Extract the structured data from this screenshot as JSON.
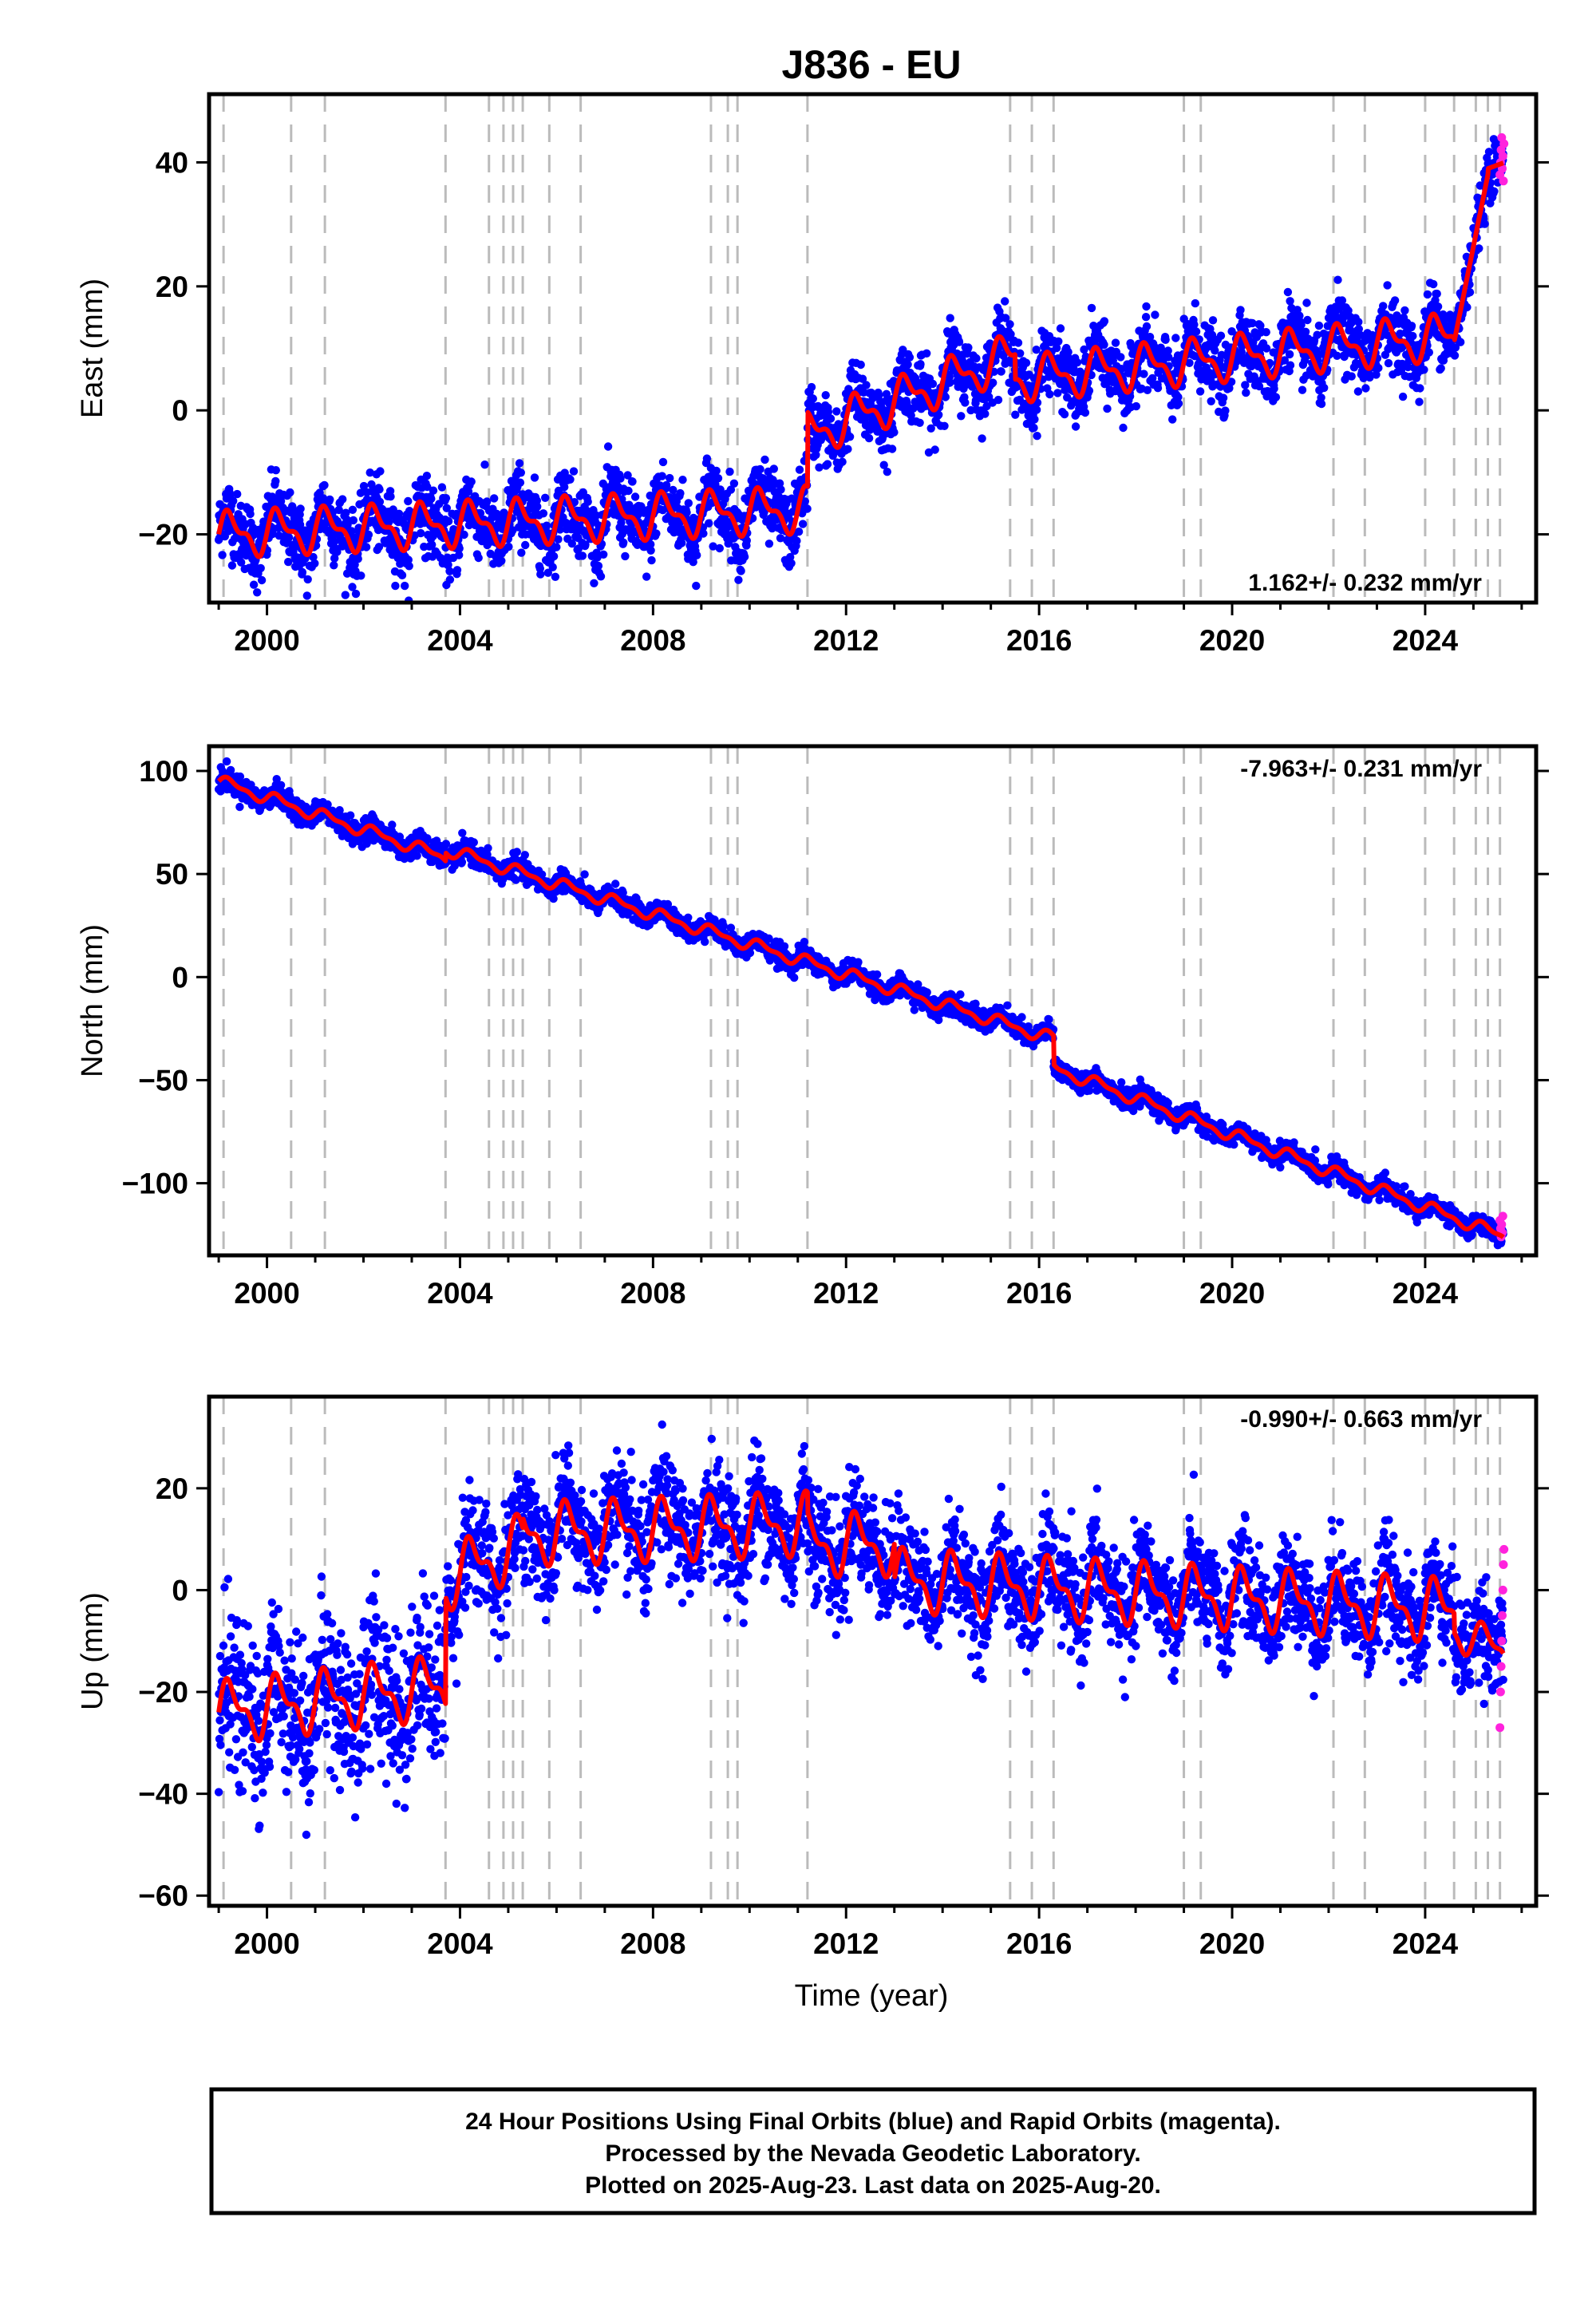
{
  "chart_data": {
    "title": "J836 - EU",
    "type": "scatter",
    "x_axis": {
      "label": "Time (year)",
      "range": [
        1998.8,
        2026.3
      ],
      "ticks": [
        2000,
        2004,
        2008,
        2012,
        2016,
        2020,
        2024
      ]
    },
    "event_lines_years": [
      1999.1,
      2000.5,
      2001.2,
      2003.7,
      2004.6,
      2004.9,
      2005.1,
      2005.3,
      2005.85,
      2006.5,
      2009.2,
      2009.55,
      2009.75,
      2011.2,
      2015.4,
      2015.85,
      2016.3,
      2019.0,
      2019.35,
      2022.1,
      2022.75,
      2024.0,
      2024.6,
      2025.05,
      2025.3,
      2025.55
    ],
    "series_legend": {
      "final": "Final Orbits (blue)",
      "rapid": "Rapid Orbits (magenta)",
      "model": "model fit (red)"
    },
    "colors": {
      "final": "#0000ff",
      "rapid": "#ff22dd",
      "model": "#ff0000",
      "events": "#bbbbbb"
    },
    "panels": [
      {
        "key": "east",
        "ylabel": "East (mm)",
        "ylim": [
          -31,
          51
        ],
        "yticks": [
          -20,
          0,
          20,
          40
        ],
        "rate_text": "1.162+/- 0.232 mm/yr",
        "rate_position": "bottom-right",
        "segments": [
          {
            "start": 1999.0,
            "end": 2011.2,
            "v0": -20,
            "v1": -16,
            "amp": 3.0,
            "noise": 3.2
          },
          {
            "start": 2011.2,
            "end": 2015.5,
            "v0": -4,
            "v1": 9,
            "amp": 3.0,
            "noise": 3.0
          },
          {
            "start": 2015.5,
            "end": 2024.6,
            "v0": 5,
            "v1": 12,
            "amp": 3.0,
            "noise": 3.0
          },
          {
            "start": 2024.6,
            "end": 2025.3,
            "v0": 11,
            "v1": 38,
            "amp": 0,
            "noise": 3.0
          },
          {
            "start": 2025.3,
            "end": 2025.65,
            "v0": 39,
            "v1": 40,
            "amp": 0,
            "noise": 2.5
          }
        ],
        "rapid_values": [
          38,
          40,
          42,
          44,
          39,
          41,
          37,
          43
        ]
      },
      {
        "key": "north",
        "ylabel": "North (mm)",
        "ylim": [
          -135,
          112
        ],
        "yticks": [
          -100,
          -50,
          0,
          50,
          100
        ],
        "rate_text": "-7.963+/- 0.231 mm/yr",
        "rate_position": "top-right",
        "segments": [
          {
            "start": 1999.0,
            "end": 2003.7,
            "v0": 95,
            "v1": 58,
            "amp": 2.5,
            "noise": 3.0
          },
          {
            "start": 2003.7,
            "end": 2016.3,
            "v0": 62,
            "v1": -30,
            "amp": 2.5,
            "noise": 2.8
          },
          {
            "start": 2016.3,
            "end": 2025.65,
            "v0": -44,
            "v1": -126,
            "amp": 2.5,
            "noise": 2.6
          }
        ],
        "rapid_values": [
          -118,
          -122,
          -126,
          -120,
          -124,
          -116
        ]
      },
      {
        "key": "up",
        "ylabel": "Up (mm)",
        "ylim": [
          -62,
          38
        ],
        "yticks": [
          -60,
          -40,
          -20,
          0,
          20
        ],
        "rate_text": "-0.990+/- 0.663 mm/yr",
        "rate_position": "top-right",
        "segments": [
          {
            "start": 1999.0,
            "end": 2003.7,
            "v0": -24,
            "v1": -19,
            "amp": 5.0,
            "noise": 8.5
          },
          {
            "start": 2003.7,
            "end": 2005.3,
            "v0": 2,
            "v1": 9,
            "amp": 5.0,
            "noise": 6.5
          },
          {
            "start": 2005.3,
            "end": 2011.2,
            "v0": 11,
            "v1": 13,
            "amp": 5.0,
            "noise": 6.0
          },
          {
            "start": 2011.2,
            "end": 2013.0,
            "v0": 9,
            "v1": 9,
            "amp": 5.0,
            "noise": 6.0
          },
          {
            "start": 2013.0,
            "end": 2024.6,
            "v0": 2,
            "v1": -4,
            "amp": 5.0,
            "noise": 5.5
          },
          {
            "start": 2024.6,
            "end": 2025.65,
            "v0": -8,
            "v1": -12,
            "amp": 3.0,
            "noise": 5.5
          }
        ],
        "rapid_values": [
          -27,
          -20,
          -15,
          -10,
          -5,
          0,
          5,
          8
        ]
      }
    ],
    "footer": {
      "line1": "24 Hour Positions Using Final Orbits (blue) and Rapid Orbits (magenta).",
      "line2": "Processed by the Nevada Geodetic Laboratory.",
      "line3": "Plotted on 2025-Aug-23. Last data on 2025-Aug-20."
    }
  }
}
